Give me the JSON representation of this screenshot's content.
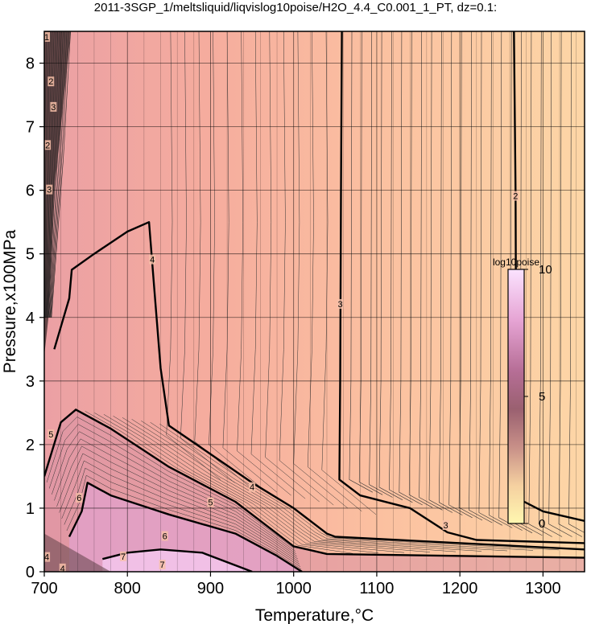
{
  "title": "2011-3SGP_1/meltsliquid/liqvislog10poise/H2O_4.4_C0.001_1_PT, dz=0.1:",
  "chart_data": {
    "type": "heatmap",
    "title": "2011-3SGP_1/meltsliquid/liqvislog10poise/H2O_4.4_C0.001_1_PT, dz=0.1:",
    "xlabel": "Temperature,°C",
    "ylabel": "Pressure,x100MPa",
    "xlim": [
      700,
      1350
    ],
    "ylim": [
      0,
      8.5
    ],
    "x_ticks": [
      700,
      800,
      900,
      1000,
      1100,
      1200,
      1300
    ],
    "y_ticks": [
      0,
      1,
      2,
      3,
      4,
      5,
      6,
      7,
      8
    ],
    "grid": true,
    "colorbar": {
      "title": "log10poise",
      "range": [
        0,
        10
      ],
      "ticks": [
        0,
        5,
        10
      ],
      "colors": [
        "#fff2a8",
        "#ffd6a0",
        "#f6b2a0",
        "#e89aa8",
        "#e6a0d2",
        "#fbe3ff"
      ]
    },
    "contour_interval": 0.1,
    "labeled_contours": [
      {
        "level": 2,
        "points": [
          [
            1265,
            8.5
          ],
          [
            1267,
            6.0
          ],
          [
            1268,
            2.0
          ],
          [
            1270,
            1.15
          ],
          [
            1300,
            0.95
          ],
          [
            1350,
            0.8
          ]
        ]
      },
      {
        "level": 3,
        "points": [
          [
            1058,
            8.5
          ],
          [
            1057,
            6.0
          ],
          [
            1056,
            3.0
          ],
          [
            1055,
            1.45
          ],
          [
            1080,
            1.2
          ],
          [
            1140,
            1.0
          ],
          [
            1185,
            0.62
          ],
          [
            1220,
            0.5
          ],
          [
            1350,
            0.45
          ]
        ]
      },
      {
        "level": 4,
        "points": [
          [
            712,
            3.5
          ],
          [
            730,
            4.3
          ],
          [
            733,
            4.75
          ],
          [
            760,
            5.0
          ],
          [
            800,
            5.35
          ],
          [
            826,
            5.5
          ],
          [
            832,
            4.5
          ],
          [
            840,
            3.2
          ],
          [
            850,
            2.3
          ],
          [
            900,
            1.85
          ],
          [
            950,
            1.4
          ],
          [
            1000,
            1.0
          ],
          [
            1040,
            0.6
          ],
          [
            1050,
            0.55
          ],
          [
            1350,
            0.35
          ]
        ]
      },
      {
        "level": 5,
        "points": [
          [
            700,
            1.5
          ],
          [
            720,
            2.35
          ],
          [
            738,
            2.55
          ],
          [
            780,
            2.25
          ],
          [
            850,
            1.65
          ],
          [
            930,
            1.1
          ],
          [
            970,
            0.7
          ],
          [
            1000,
            0.4
          ],
          [
            1040,
            0.28
          ],
          [
            1350,
            0.22
          ]
        ]
      },
      {
        "level": 6,
        "points": [
          [
            730,
            0.55
          ],
          [
            745,
            0.95
          ],
          [
            752,
            1.4
          ],
          [
            780,
            1.2
          ],
          [
            850,
            0.9
          ],
          [
            930,
            0.6
          ],
          [
            980,
            0.25
          ],
          [
            1010,
            0.0
          ]
        ]
      },
      {
        "level": 7,
        "points": [
          [
            770,
            0.2
          ],
          [
            800,
            0.3
          ],
          [
            840,
            0.35
          ],
          [
            890,
            0.3
          ],
          [
            940,
            0.05
          ],
          [
            950,
            0.0
          ]
        ]
      }
    ],
    "contour_labels": [
      {
        "text": "1",
        "x": 703,
        "y": 8.4
      },
      {
        "text": "2",
        "x": 708,
        "y": 7.7
      },
      {
        "text": "3",
        "x": 711,
        "y": 7.3
      },
      {
        "text": "2",
        "x": 704,
        "y": 6.7
      },
      {
        "text": "3",
        "x": 706,
        "y": 6.0
      },
      {
        "text": "2",
        "x": 1267,
        "y": 5.9
      },
      {
        "text": "4",
        "x": 830,
        "y": 4.9
      },
      {
        "text": "3",
        "x": 1056,
        "y": 4.2
      },
      {
        "text": "5",
        "x": 708,
        "y": 2.15
      },
      {
        "text": "4",
        "x": 950,
        "y": 1.32
      },
      {
        "text": "5",
        "x": 900,
        "y": 1.08
      },
      {
        "text": "6",
        "x": 742,
        "y": 1.15
      },
      {
        "text": "6",
        "x": 845,
        "y": 0.55
      },
      {
        "text": "3",
        "x": 1183,
        "y": 0.72
      },
      {
        "text": "7",
        "x": 795,
        "y": 0.23
      },
      {
        "text": "7",
        "x": 842,
        "y": 0.1
      },
      {
        "text": "4",
        "x": 703,
        "y": 0.22
      },
      {
        "text": "4",
        "x": 722,
        "y": 0.04
      }
    ]
  }
}
